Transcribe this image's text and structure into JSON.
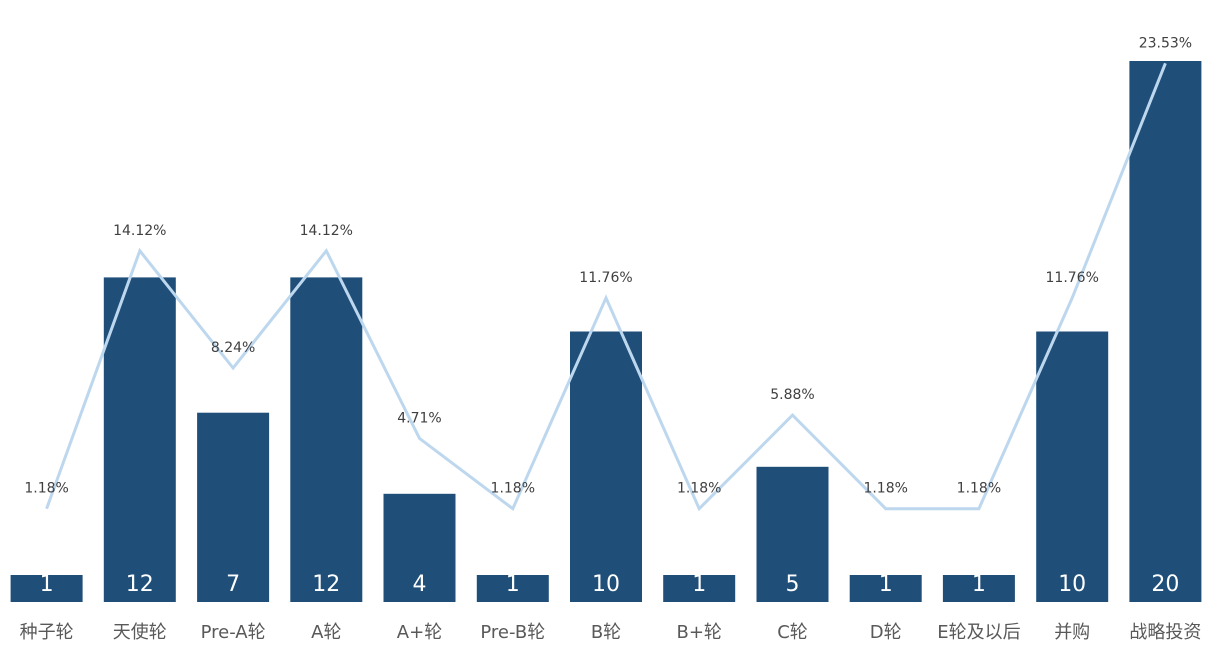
{
  "chart_data": {
    "type": "bar",
    "categories": [
      "种子轮",
      "天使轮",
      "Pre-A轮",
      "A轮",
      "A+轮",
      "Pre-B轮",
      "B轮",
      "B+轮",
      "C轮",
      "D轮",
      "E轮及以后",
      "并购",
      "战略投资"
    ],
    "series": [
      {
        "type": "bar",
        "values": [
          1,
          12,
          7,
          12,
          4,
          1,
          10,
          1,
          5,
          1,
          1,
          10,
          20
        ]
      },
      {
        "type": "line",
        "values": [
          1.18,
          14.12,
          8.24,
          14.12,
          4.71,
          1.18,
          11.76,
          1.18,
          5.88,
          1.18,
          1.18,
          11.76,
          23.53
        ],
        "labels": [
          "1.18%",
          "14.12%",
          "8.24%",
          "14.12%",
          "4.71%",
          "1.18%",
          "11.76%",
          "1.18%",
          "5.88%",
          "1.18%",
          "1.18%",
          "11.76%",
          "23.53%"
        ]
      }
    ],
    "ylim": [
      0,
      21
    ],
    "y2lim": [
      -3.5,
      25
    ],
    "grid": false,
    "legend": "none",
    "colors": {
      "bar": "#1f4e79",
      "line": "#bdd7ee"
    }
  }
}
